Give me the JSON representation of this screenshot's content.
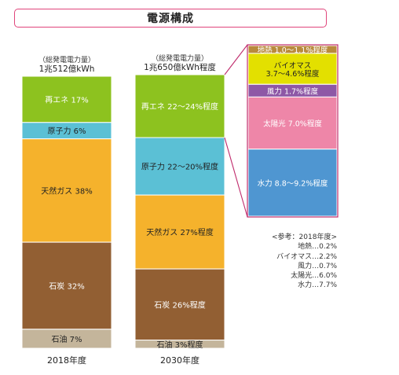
{
  "title": "電源構成",
  "chart_data": {
    "type": "bar",
    "stacked": true,
    "bars": [
      {
        "year_label": "2018年度",
        "total_top": "（総発電電力量）",
        "total_bottom": "1兆512億kWh",
        "segments": [
          {
            "label": "再エネ 17%",
            "value": 17,
            "color": "#8dc21f"
          },
          {
            "label": "原子力 6%",
            "value": 6,
            "color": "#5bc0d5"
          },
          {
            "label": "天然ガス 38%",
            "value": 38,
            "color": "#f5b22c"
          },
          {
            "label": "石炭 32%",
            "value": 32,
            "color": "#925f33"
          },
          {
            "label": "石油 7%",
            "value": 7,
            "color": "#c4b59b"
          }
        ]
      },
      {
        "year_label": "2030年度",
        "total_top": "（総発電電力量）",
        "total_bottom": "1兆650億kWh程度",
        "segments": [
          {
            "label": "再エネ 22～24%程度",
            "value": 23,
            "color": "#8dc21f"
          },
          {
            "label": "原子力 22～20%程度",
            "value": 21,
            "color": "#5bc0d5"
          },
          {
            "label": "天然ガス 27%程度",
            "value": 27,
            "color": "#f5b22c"
          },
          {
            "label": "石炭 26%程度",
            "value": 26,
            "color": "#925f33"
          },
          {
            "label": "石油 3%程度",
            "value": 3,
            "color": "#c4b59b"
          }
        ]
      }
    ],
    "breakdown": {
      "of": "再エネ",
      "segments": [
        {
          "label": "地熱 1.0～1.1%程度",
          "value": 1.05,
          "color": "#b98a3c"
        },
        {
          "label": "バイオマス\n3.7～4.6%程度",
          "value": 4.15,
          "color": "#e3e000"
        },
        {
          "label": "風力 1.7%程度",
          "value": 1.7,
          "color": "#8e58a6"
        },
        {
          "label": "太陽光 7.0%程度",
          "value": 7.0,
          "color": "#ee86a8"
        },
        {
          "label": "水力 8.8～9.2%程度",
          "value": 9.0,
          "color": "#4f96d1"
        }
      ]
    },
    "reference": {
      "heading": "<参考：2018年度>",
      "items": [
        "地熱…0.2%",
        "バイオマス…2.2%",
        "風力…0.7%",
        "太陽光…6.0%",
        "水力…7.7%"
      ]
    }
  }
}
